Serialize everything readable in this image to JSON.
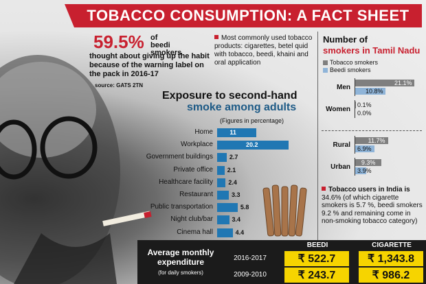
{
  "title": "TOBACCO CONSUMPTION: A FACT SHEET",
  "warning": {
    "pct": "59.5%",
    "side": "of beedi smokers",
    "text": "thought about giving up the habit because of the warning label on the pack in 2016-17",
    "source": "source: GATS 2TN"
  },
  "common": "Most commonly used tobacco products: cigarettes, betel quid with tobacco, beedi, khaini and oral application",
  "india_note": {
    "lead": "Tobacco users in India is",
    "rest": "34.6% (of which cigarette smokers is 5.7 %, beedi smokers 9.2 % and remaining come in non-smoking tobacco category)"
  },
  "expenditure": {
    "label": "Average monthly expenditure",
    "sub": "(for daily smokers)",
    "col_beedi": "BEEDI",
    "col_cig": "CIGARETTE",
    "rows": [
      {
        "year": "2016-2017",
        "beedi": "₹ 522.7",
        "cig": "₹ 1,343.8"
      },
      {
        "year": "2009-2010",
        "beedi": "₹ 243.7",
        "cig": "₹ 986.2"
      }
    ]
  },
  "chart_data": [
    {
      "type": "bar",
      "orientation": "horizontal",
      "title": "Exposure to second-hand smoke among adults",
      "title_line1": "Exposure to second-hand",
      "title_line2": "smoke among adults",
      "subtitle": "(Figures in percentage)",
      "categories": [
        "Home",
        "Workplace",
        "Government buildings",
        "Private office",
        "Healthcare facility",
        "Restaurant",
        "Public transportation",
        "Night club/bar",
        "Cinema hall"
      ],
      "values": [
        11,
        20.2,
        2.7,
        2.1,
        2.4,
        3.3,
        5.8,
        3.4,
        4.4
      ],
      "value_labels": [
        "11",
        "20.2",
        "2.7",
        "2.1",
        "2.4",
        "3.3",
        "5.8",
        "3.4",
        "4.4"
      ],
      "color": "#2077b3"
    },
    {
      "type": "bar",
      "orientation": "horizontal",
      "title_line1": "Number of",
      "title_line2": "smokers in Tamil Nadu",
      "series": [
        {
          "name": "Tobacco smokers",
          "color": "#7f7f7f"
        },
        {
          "name": "Beedi smokers",
          "color": "#8fb4d8"
        }
      ],
      "groups": [
        {
          "label": "Men",
          "values": [
            21.1,
            10.8
          ],
          "value_labels": [
            "21.1%",
            "10.8%"
          ]
        },
        {
          "label": "Women",
          "values": [
            0.1,
            0.0
          ],
          "value_labels": [
            "0.1%",
            "0.0%"
          ]
        },
        {
          "label": "Rural",
          "values": [
            11.7,
            6.9
          ],
          "value_labels": [
            "11.7%",
            "6.9%"
          ]
        },
        {
          "label": "Urban",
          "values": [
            9.3,
            3.9
          ],
          "value_labels": [
            "9.3%",
            "3.9%"
          ]
        }
      ]
    }
  ]
}
